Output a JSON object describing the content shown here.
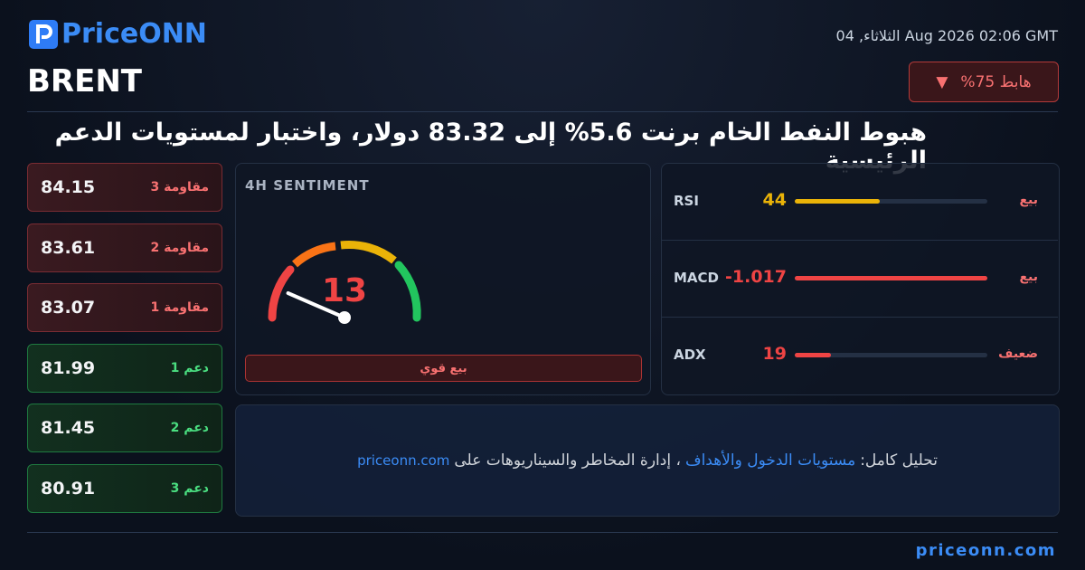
{
  "header": {
    "logo": "PriceONN",
    "symbol": "BRENT",
    "datetime": "الثلاثاء, 04 Aug 2026 02:06 GMT",
    "badge": "%هابط 75",
    "badge_icon": "▼"
  },
  "headline": "هبوط النفط الخام برنت 5.6% إلى 83.32 دولار، واختبار لمستويات الدعم الرئيسية",
  "levels": [
    {
      "label": "مقاومة 3",
      "value": "84.15",
      "kind": "resistance"
    },
    {
      "label": "مقاومة 2",
      "value": "83.61",
      "kind": "resistance"
    },
    {
      "label": "مقاومة 1",
      "value": "83.07",
      "kind": "resistance"
    },
    {
      "label": "دعم 1",
      "value": "81.99",
      "kind": "support"
    },
    {
      "label": "دعم 2",
      "value": "81.45",
      "kind": "support"
    },
    {
      "label": "دعم 3",
      "value": "80.91",
      "kind": "support"
    }
  ],
  "sentiment": {
    "title": "4H SENTIMENT",
    "value": 13,
    "range": [
      0,
      100
    ],
    "label": "بيع قوي"
  },
  "indicators": {
    "bar_range": [
      0,
      100
    ],
    "rows": [
      {
        "name": "RSI",
        "value": 44,
        "bar": 44,
        "signal": "بيع",
        "color": "#eab308"
      },
      {
        "name": "MACD",
        "value": "-1.017",
        "bar": 100,
        "signal": "بيع",
        "color": "#ef4444"
      },
      {
        "name": "ADX",
        "value": 19,
        "bar": 19,
        "signal": "ضعيف",
        "color": "#ef4444"
      }
    ]
  },
  "cta": {
    "prefix": "تحليل كامل:",
    "link": "مستويات الدخول والأهداف",
    "rest": "، إدارة المخاطر والسيناريوهات على",
    "site": "priceonn.com"
  },
  "footer": {
    "site": "priceonn.com"
  }
}
